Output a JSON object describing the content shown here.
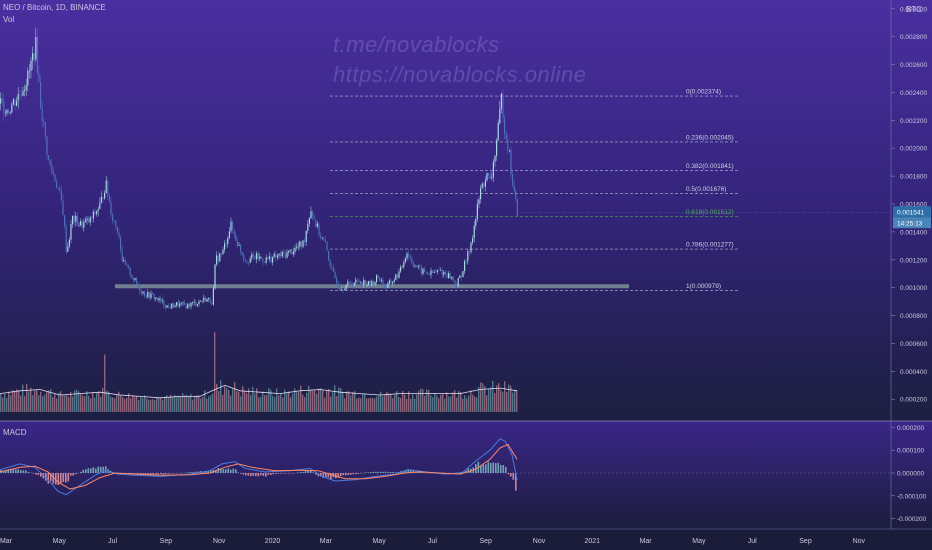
{
  "header": {
    "symbol": "NEO / Bitcoin, 1D, BINANCE",
    "vol_label": "Vol",
    "macd_label": "MACD",
    "currency": "BTC"
  },
  "watermark": {
    "line1": "t.me/novablocks",
    "line2": "https://novablocks.online"
  },
  "price_badge": {
    "value": "0.001541",
    "countdown": "14:25:13"
  },
  "colors": {
    "up": "#26a69a",
    "down": "#ef5350",
    "grid": "#8888aa",
    "support": "#8aa0a0",
    "fib_highlight": "#4caf50"
  },
  "chart_data": {
    "type": "candlestick",
    "price_ticks": [
      "0.003000",
      "0.002800",
      "0.002600",
      "0.002400",
      "0.002200",
      "0.002000",
      "0.001800",
      "0.001600",
      "0.001400",
      "0.001200",
      "0.001000",
      "0.000800",
      "0.000600",
      "0.000400",
      "0.000200"
    ],
    "macd_ticks": [
      "0.000200",
      "0.000100",
      "0.000000",
      "-0.000100",
      "-0.000200"
    ],
    "x_ticks": [
      "Mar",
      "May",
      "Jul",
      "Sep",
      "Nov",
      "2020",
      "Mar",
      "May",
      "Jul",
      "Sep",
      "Nov",
      "2021",
      "Mar",
      "May",
      "Jul",
      "Sep",
      "Nov"
    ],
    "price_range": [
      0.00018,
      0.00302
    ],
    "macd_range": [
      -0.000215,
      0.000215
    ],
    "fib_levels": [
      {
        "ratio": "0",
        "price": 0.002374,
        "label": "0(0.002374)"
      },
      {
        "ratio": "0.236",
        "price": 0.002045,
        "label": "0.236(0.002045)"
      },
      {
        "ratio": "0.382",
        "price": 0.001841,
        "label": "0.382(0.001841)"
      },
      {
        "ratio": "0.5",
        "price": 0.001676,
        "label": "0.5(0.001676)"
      },
      {
        "ratio": "0.618",
        "price": 0.001512,
        "label": "0.618(0.001512)"
      },
      {
        "ratio": "0.786",
        "price": 0.001277,
        "label": "0.786(0.001277)"
      },
      {
        "ratio": "1",
        "price": 0.000979,
        "label": "1(0.000979)"
      }
    ],
    "support_price": 0.00101,
    "price_path": [
      [
        0,
        0.00232
      ],
      [
        8,
        0.00228
      ],
      [
        18,
        0.00238
      ],
      [
        28,
        0.00252
      ],
      [
        35,
        0.00275
      ],
      [
        40,
        0.00232
      ],
      [
        48,
        0.0019
      ],
      [
        56,
        0.00175
      ],
      [
        62,
        0.00158
      ],
      [
        66,
        0.00125
      ],
      [
        72,
        0.0015
      ],
      [
        80,
        0.00145
      ],
      [
        90,
        0.00148
      ],
      [
        100,
        0.0016
      ],
      [
        105,
        0.00175
      ],
      [
        112,
        0.0015
      ],
      [
        118,
        0.0014
      ],
      [
        122,
        0.00118
      ],
      [
        130,
        0.0011
      ],
      [
        138,
        0.001
      ],
      [
        145,
        0.00095
      ],
      [
        152,
        0.00094
      ],
      [
        160,
        0.0009
      ],
      [
        168,
        0.00086
      ],
      [
        175,
        0.00088
      ],
      [
        185,
        0.00087
      ],
      [
        195,
        0.00089
      ],
      [
        205,
        0.00092
      ],
      [
        212,
        0.0009
      ],
      [
        215,
        0.0012
      ],
      [
        222,
        0.00125
      ],
      [
        230,
        0.00145
      ],
      [
        238,
        0.0013
      ],
      [
        245,
        0.0012
      ],
      [
        255,
        0.00122
      ],
      [
        265,
        0.0012
      ],
      [
        275,
        0.00122
      ],
      [
        285,
        0.00124
      ],
      [
        295,
        0.00128
      ],
      [
        303,
        0.00132
      ],
      [
        310,
        0.00157
      ],
      [
        318,
        0.0014
      ],
      [
        325,
        0.0013
      ],
      [
        332,
        0.0011
      ],
      [
        340,
        0.001
      ],
      [
        350,
        0.00103
      ],
      [
        360,
        0.00105
      ],
      [
        370,
        0.00102
      ],
      [
        378,
        0.00108
      ],
      [
        385,
        0.001
      ],
      [
        392,
        0.00105
      ],
      [
        400,
        0.00112
      ],
      [
        406,
        0.00126
      ],
      [
        412,
        0.00118
      ],
      [
        420,
        0.00112
      ],
      [
        430,
        0.0011
      ],
      [
        440,
        0.00112
      ],
      [
        450,
        0.00108
      ],
      [
        456,
        0.00102
      ],
      [
        462,
        0.00112
      ],
      [
        468,
        0.00125
      ],
      [
        474,
        0.00145
      ],
      [
        480,
        0.0017
      ],
      [
        486,
        0.0018
      ],
      [
        490,
        0.00175
      ],
      [
        494,
        0.00195
      ],
      [
        498,
        0.00215
      ],
      [
        501,
        0.00237
      ],
      [
        504,
        0.00215
      ],
      [
        508,
        0.002
      ],
      [
        511,
        0.0018
      ],
      [
        514,
        0.00165
      ],
      [
        517,
        0.00154
      ]
    ],
    "volume_path": [
      [
        0,
        0.00024
      ],
      [
        20,
        0.00026
      ],
      [
        40,
        0.00027
      ],
      [
        60,
        0.00023
      ],
      [
        80,
        0.00024
      ],
      [
        100,
        0.00025
      ],
      [
        120,
        0.00023
      ],
      [
        140,
        0.00022
      ],
      [
        160,
        0.00021
      ],
      [
        180,
        0.00022
      ],
      [
        200,
        0.00022
      ],
      [
        212,
        0.00026
      ],
      [
        225,
        0.0003
      ],
      [
        240,
        0.00026
      ],
      [
        260,
        0.00025
      ],
      [
        280,
        0.00024
      ],
      [
        300,
        0.00026
      ],
      [
        320,
        0.00027
      ],
      [
        340,
        0.00025
      ],
      [
        360,
        0.00024
      ],
      [
        380,
        0.00023
      ],
      [
        400,
        0.00024
      ],
      [
        420,
        0.00024
      ],
      [
        440,
        0.00024
      ],
      [
        460,
        0.00024
      ],
      [
        480,
        0.00027
      ],
      [
        500,
        0.00028
      ],
      [
        517,
        0.00026
      ]
    ],
    "macd_path": [
      [
        0,
        1.5e-05
      ],
      [
        20,
        4e-05
      ],
      [
        35,
        2.5e-05
      ],
      [
        48,
        -3e-05
      ],
      [
        58,
        -8e-05
      ],
      [
        66,
        -9.5e-05
      ],
      [
        78,
        -6e-05
      ],
      [
        95,
        -1e-05
      ],
      [
        105,
        1e-05
      ],
      [
        118,
        -5e-06
      ],
      [
        135,
        -1e-05
      ],
      [
        160,
        -1.5e-05
      ],
      [
        190,
        -5e-06
      ],
      [
        210,
        1e-05
      ],
      [
        222,
        4e-05
      ],
      [
        235,
        5e-05
      ],
      [
        245,
        2e-05
      ],
      [
        265,
        5e-06
      ],
      [
        290,
        1e-05
      ],
      [
        310,
        2e-05
      ],
      [
        322,
        -1.5e-05
      ],
      [
        335,
        -3.5e-05
      ],
      [
        355,
        -3e-05
      ],
      [
        375,
        -1.5e-05
      ],
      [
        395,
        -5e-06
      ],
      [
        408,
        1.5e-05
      ],
      [
        425,
        5e-06
      ],
      [
        445,
        -5e-06
      ],
      [
        462,
        0.0
      ],
      [
        475,
        5e-05
      ],
      [
        490,
        0.0001
      ],
      [
        500,
        0.00015
      ],
      [
        505,
        0.00014
      ],
      [
        512,
        8e-05
      ],
      [
        517,
        -3e-05
      ]
    ],
    "signal_path": [
      [
        0,
        5e-06
      ],
      [
        20,
        2.5e-05
      ],
      [
        35,
        3e-05
      ],
      [
        48,
        5e-06
      ],
      [
        58,
        -4e-05
      ],
      [
        70,
        -7e-05
      ],
      [
        85,
        -5.5e-05
      ],
      [
        100,
        -2e-05
      ],
      [
        115,
        0.0
      ],
      [
        135,
        -5e-06
      ],
      [
        160,
        -1e-05
      ],
      [
        190,
        -8e-06
      ],
      [
        210,
        0.0
      ],
      [
        225,
        2.5e-05
      ],
      [
        238,
        4e-05
      ],
      [
        252,
        2.5e-05
      ],
      [
        275,
        1e-05
      ],
      [
        300,
        1.2e-05
      ],
      [
        318,
        1e-05
      ],
      [
        330,
        -5e-06
      ],
      [
        345,
        -2.5e-05
      ],
      [
        365,
        -2.5e-05
      ],
      [
        385,
        -1.5e-05
      ],
      [
        405,
        0.0
      ],
      [
        420,
        5e-06
      ],
      [
        440,
        0.0
      ],
      [
        460,
        -5e-06
      ],
      [
        475,
        1.5e-05
      ],
      [
        490,
        6e-05
      ],
      [
        500,
        0.00011
      ],
      [
        508,
        0.000125
      ],
      [
        517,
        6e-05
      ]
    ]
  }
}
